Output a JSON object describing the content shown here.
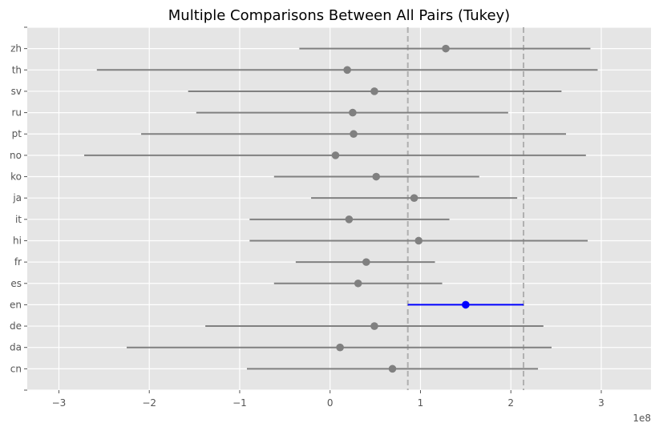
{
  "chart_data": {
    "type": "scatter",
    "title": "Multiple Comparisons Between All Pairs (Tukey)",
    "xlabel": "",
    "ylabel": "",
    "x_offset_label": "1e8",
    "xlim": [
      -3.35,
      3.55
    ],
    "x_ticks": [
      -3,
      -2,
      -1,
      0,
      1,
      2,
      3
    ],
    "x_tick_labels": [
      "−3",
      "−2",
      "−1",
      "0",
      "1",
      "2",
      "3"
    ],
    "groups": [
      "cn",
      "da",
      "de",
      "en",
      "es",
      "fr",
      "hi",
      "it",
      "ja",
      "ko",
      "no",
      "pt",
      "ru",
      "sv",
      "th",
      "zh"
    ],
    "means": [
      0.69,
      0.11,
      0.49,
      1.5,
      0.31,
      0.4,
      0.98,
      0.21,
      0.93,
      0.51,
      0.06,
      0.26,
      0.25,
      0.49,
      0.19,
      1.28
    ],
    "lower": [
      -0.92,
      -2.25,
      -1.38,
      0.86,
      -0.62,
      -0.38,
      -0.89,
      -0.89,
      -0.21,
      -0.62,
      -2.72,
      -2.09,
      -1.48,
      -1.57,
      -2.58,
      -0.34
    ],
    "upper": [
      2.3,
      2.45,
      2.36,
      2.14,
      1.24,
      1.16,
      2.85,
      1.32,
      2.07,
      1.65,
      2.83,
      2.61,
      1.97,
      2.56,
      2.96,
      2.88
    ],
    "highlight_group": "en",
    "reference_lines": [
      0.86,
      2.14
    ],
    "grid": true,
    "colors": {
      "background": "#e5e5e5",
      "grid": "#ffffff",
      "default": "#808080",
      "highlight": "#0000ff",
      "reference": "#b0b0b0"
    }
  }
}
